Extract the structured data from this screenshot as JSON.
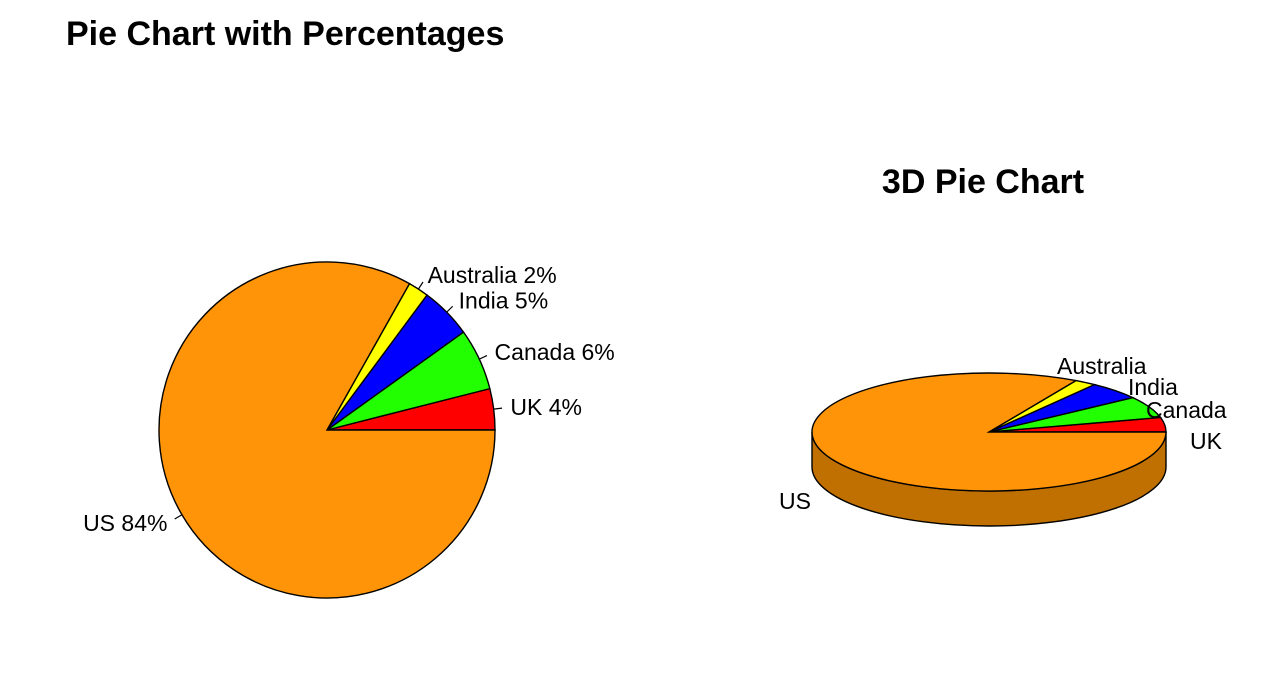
{
  "chart_data": [
    {
      "type": "pie",
      "title": "Pie Chart with Percentages",
      "categories": [
        "UK",
        "Canada",
        "India",
        "Australia",
        "US"
      ],
      "values": [
        4,
        6,
        5,
        2,
        84
      ],
      "labels": [
        "UK 4%",
        "Canada 6%",
        "India 5%",
        "Australia 2%",
        "US 84%"
      ],
      "colors": [
        "#ff0000",
        "#22ff00",
        "#0000ff",
        "#ffff00",
        "#ff9408"
      ]
    },
    {
      "type": "pie",
      "title": "3D Pie Chart",
      "style": "3d",
      "categories": [
        "UK",
        "Canada",
        "India",
        "Australia",
        "US"
      ],
      "values": [
        4,
        6,
        5,
        2,
        84
      ],
      "labels": [
        "UK",
        "Canada",
        "India",
        "Australia",
        "US"
      ],
      "colors": [
        "#ff0000",
        "#22ff00",
        "#0000ff",
        "#ffff00",
        "#ff9408"
      ],
      "side_color": "#c07000"
    }
  ]
}
